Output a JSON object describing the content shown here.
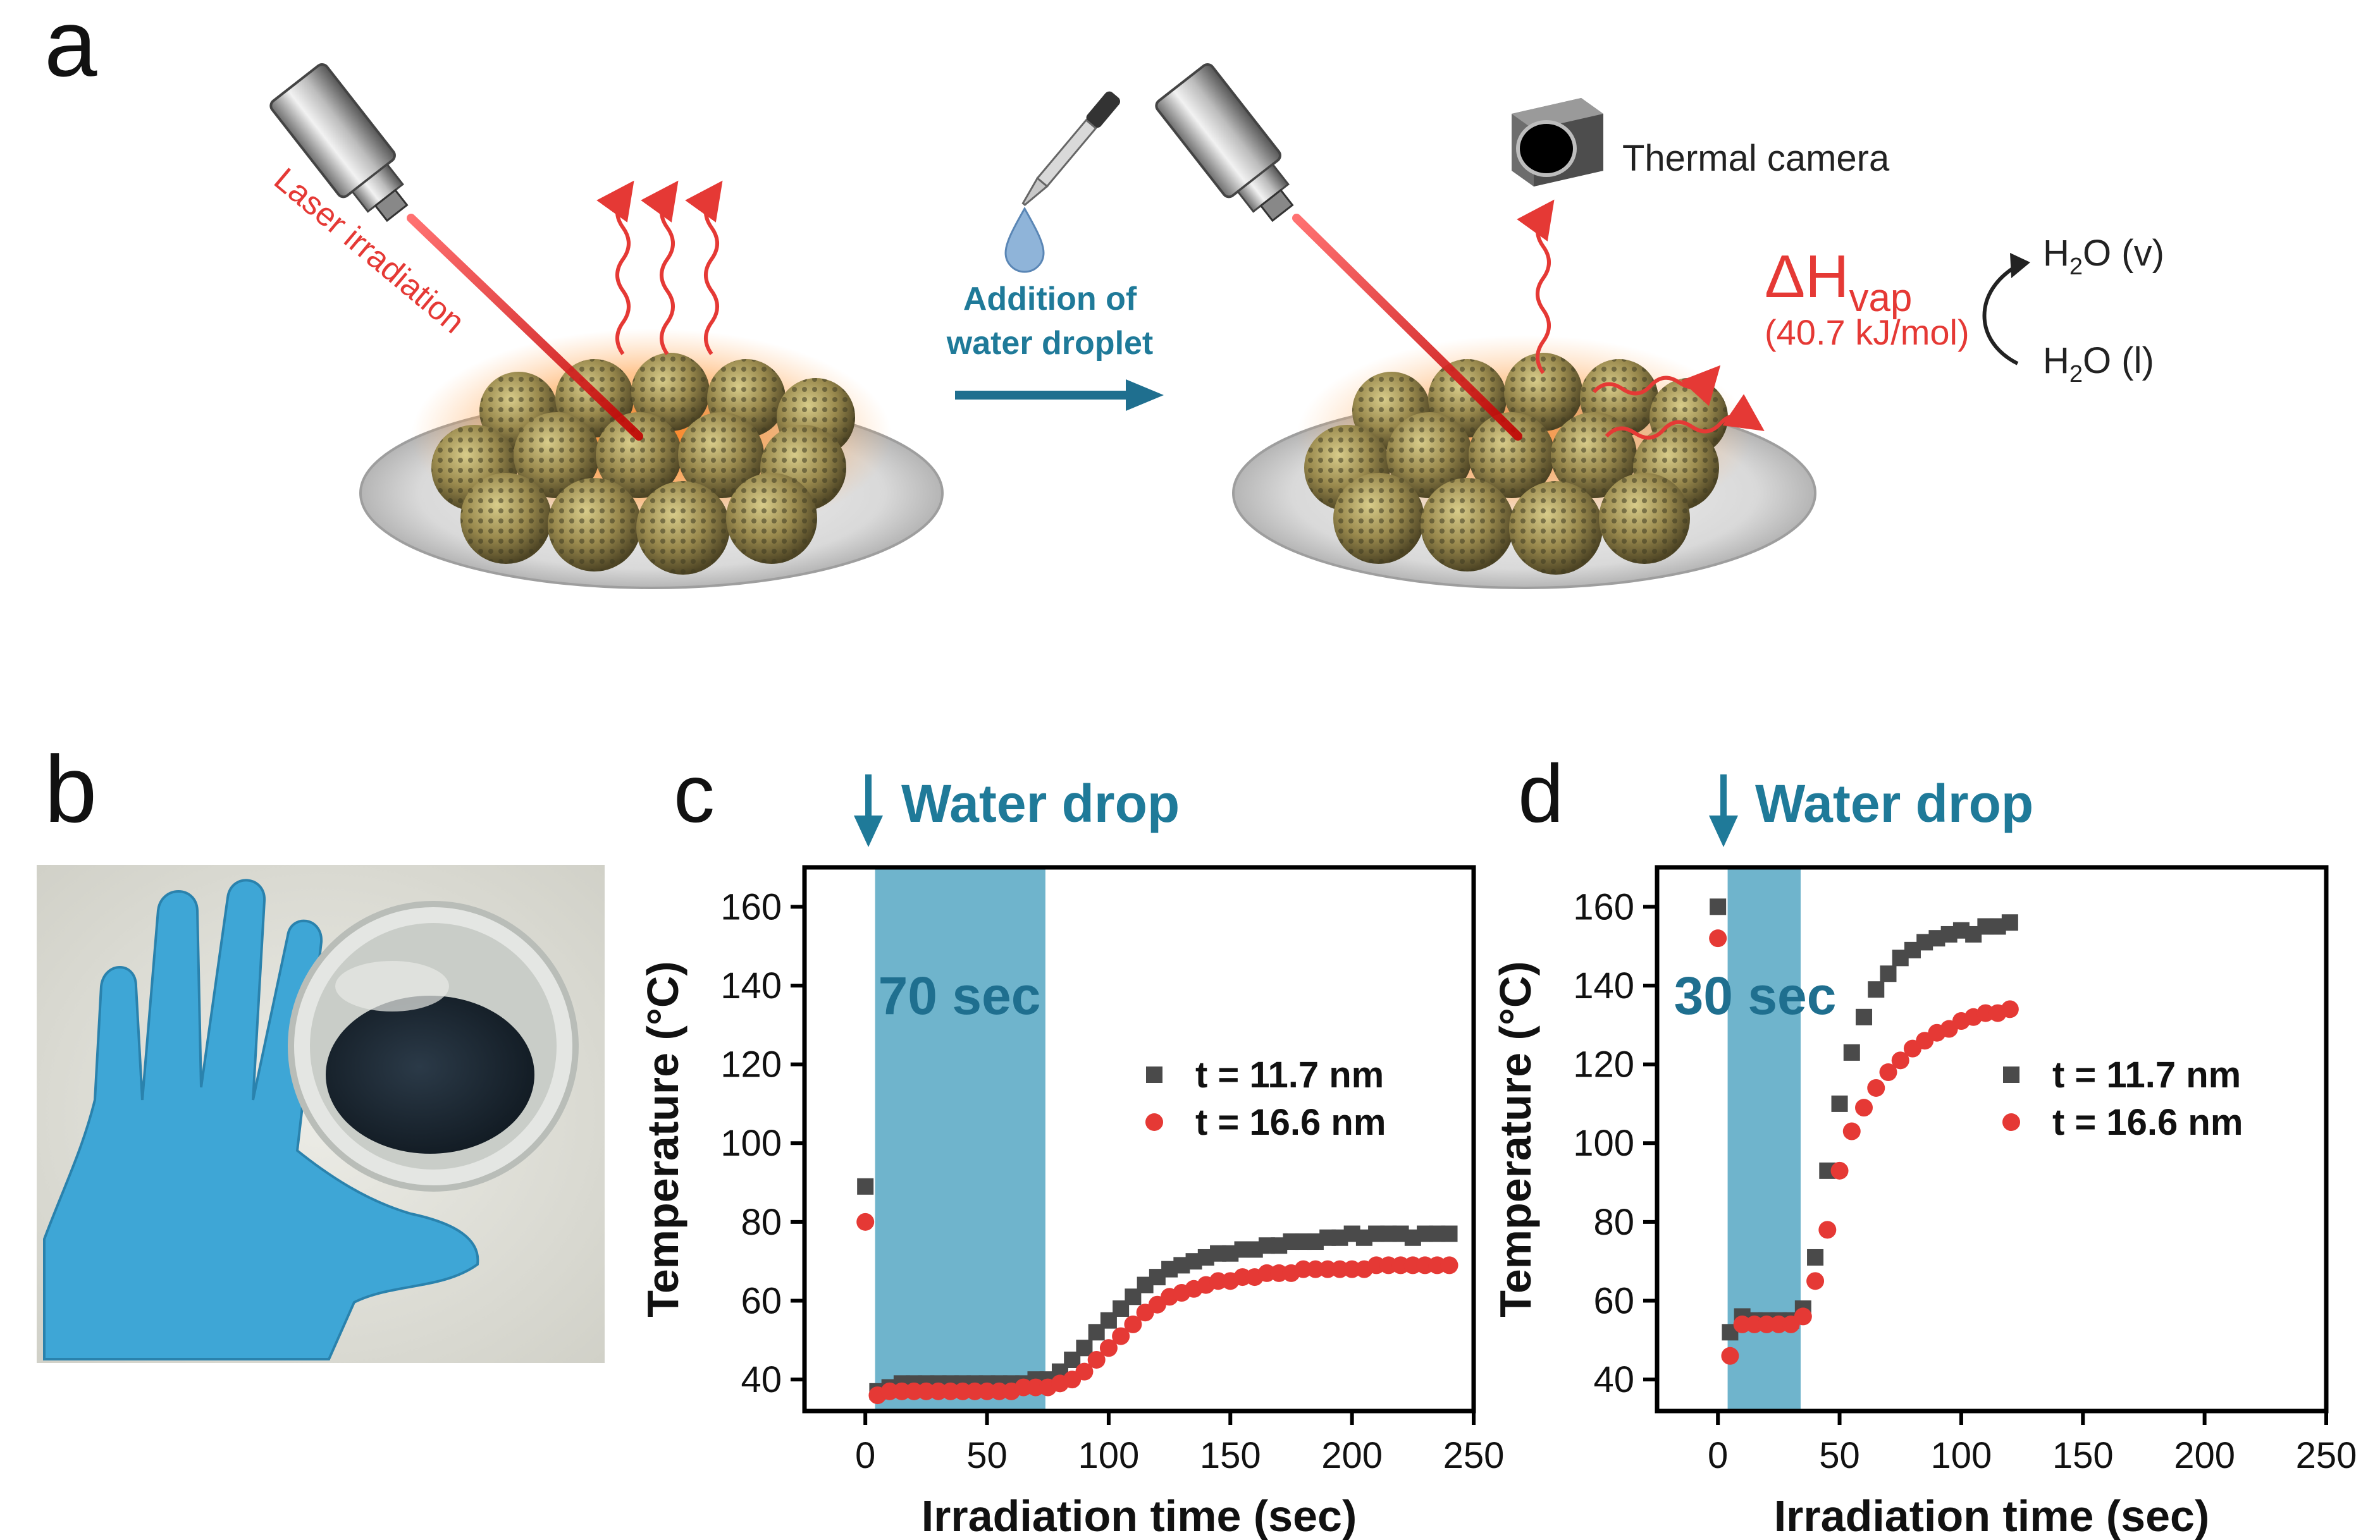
{
  "colors": {
    "laser_red": "#e53935",
    "teal": "#1f7a99",
    "band": "#6fb4cc",
    "series_dark": "#4a4a4a",
    "series_red": "#e53935",
    "glove": "#3ea6d6",
    "particle": "#9a8a4e",
    "glow": "#ff8a2a"
  },
  "panel_a": {
    "label": "a",
    "laser_label": "Laser irradiation",
    "step_label_line1": "Addition of",
    "step_label_line2": "water droplet",
    "camera_label": "Thermal camera",
    "dh_symbol": "ΔH",
    "dh_sub": "vap",
    "dh_value": "(40.7 kJ/mol)",
    "vapor": {
      "h": "H",
      "two": "2",
      "o": "O",
      "state": "(v)"
    },
    "liquid": {
      "h": "H",
      "two": "2",
      "o": "O",
      "state": "(l)"
    },
    "icons": [
      "laser-head-icon",
      "pipette-icon",
      "water-drop-icon",
      "thermal-camera-icon",
      "heat-wave-icon",
      "nanoparticle-icon",
      "dish-icon"
    ]
  },
  "panel_b": {
    "label": "b",
    "icons": [
      "glove-hand-icon",
      "petri-dish-icon"
    ]
  },
  "chart_data": [
    {
      "panel": "c",
      "type": "scatter",
      "annotation": "Water drop",
      "band_label": "70 sec",
      "band": [
        4,
        74
      ],
      "xlabel": "Irradiation time (sec)",
      "ylabel": "Temperature (°C)",
      "xlim": [
        -25,
        250
      ],
      "ylim": [
        32,
        170
      ],
      "xticks": [
        "0",
        "50",
        "100",
        "150",
        "200",
        "250"
      ],
      "yticks": [
        "40",
        "60",
        "80",
        "100",
        "120",
        "140",
        "160"
      ],
      "xtick_values": [
        0,
        50,
        100,
        150,
        200,
        250
      ],
      "ytick_values": [
        40,
        60,
        80,
        100,
        120,
        140,
        160
      ],
      "legend_position": "center-right",
      "series": [
        {
          "name": "t = 11.7 nm",
          "marker": "square",
          "x": [
            0,
            5,
            10,
            15,
            20,
            25,
            30,
            35,
            40,
            45,
            50,
            55,
            60,
            65,
            70,
            75,
            80,
            85,
            90,
            95,
            100,
            105,
            110,
            115,
            120,
            125,
            130,
            135,
            140,
            145,
            150,
            155,
            160,
            165,
            170,
            175,
            180,
            185,
            190,
            195,
            200,
            205,
            210,
            215,
            220,
            225,
            230,
            235,
            240
          ],
          "y": [
            89,
            37,
            38,
            39,
            39,
            39,
            39,
            39,
            39,
            39,
            39,
            39,
            39,
            39,
            40,
            40,
            42,
            45,
            48,
            52,
            55,
            58,
            61,
            64,
            66,
            68,
            69,
            70,
            71,
            72,
            72,
            73,
            73,
            74,
            74,
            75,
            75,
            75,
            76,
            76,
            77,
            76,
            77,
            77,
            77,
            76,
            77,
            77,
            77
          ]
        },
        {
          "name": "t = 16.6 nm",
          "marker": "circle",
          "x": [
            0,
            5,
            10,
            15,
            20,
            25,
            30,
            35,
            40,
            45,
            50,
            55,
            60,
            65,
            70,
            75,
            80,
            85,
            90,
            95,
            100,
            105,
            110,
            115,
            120,
            125,
            130,
            135,
            140,
            145,
            150,
            155,
            160,
            165,
            170,
            175,
            180,
            185,
            190,
            195,
            200,
            205,
            210,
            215,
            220,
            225,
            230,
            235,
            240
          ],
          "y": [
            80,
            36,
            37,
            37,
            37,
            37,
            37,
            37,
            37,
            37,
            37,
            37,
            37,
            38,
            38,
            38,
            39,
            40,
            42,
            45,
            48,
            51,
            54,
            57,
            59,
            61,
            62,
            63,
            64,
            65,
            65,
            66,
            66,
            67,
            67,
            67,
            68,
            68,
            68,
            68,
            68,
            68,
            69,
            69,
            69,
            69,
            69,
            69,
            69
          ]
        }
      ]
    },
    {
      "panel": "d",
      "type": "scatter",
      "annotation": "Water drop",
      "band_label": "30 sec",
      "band": [
        4,
        34
      ],
      "xlabel": "Irradiation time (sec)",
      "ylabel": "Temperature (°C)",
      "xlim": [
        -25,
        250
      ],
      "ylim": [
        32,
        170
      ],
      "xticks": [
        "0",
        "50",
        "100",
        "150",
        "200",
        "250"
      ],
      "yticks": [
        "40",
        "60",
        "80",
        "100",
        "120",
        "140",
        "160"
      ],
      "xtick_values": [
        0,
        50,
        100,
        150,
        200,
        250
      ],
      "ytick_values": [
        40,
        60,
        80,
        100,
        120,
        140,
        160
      ],
      "legend_position": "center-right",
      "series": [
        {
          "name": "t = 11.7 nm",
          "marker": "square",
          "x": [
            0,
            5,
            10,
            15,
            20,
            25,
            30,
            35,
            40,
            45,
            50,
            55,
            60,
            65,
            70,
            75,
            80,
            85,
            90,
            95,
            100,
            105,
            110,
            115,
            120
          ],
          "y": [
            160,
            52,
            56,
            55,
            55,
            55,
            55,
            58,
            71,
            93,
            110,
            123,
            132,
            139,
            143,
            147,
            149,
            151,
            152,
            153,
            154,
            153,
            155,
            155,
            156
          ]
        },
        {
          "name": "t = 16.6 nm",
          "marker": "circle",
          "x": [
            0,
            5,
            10,
            15,
            20,
            25,
            30,
            35,
            40,
            45,
            50,
            55,
            60,
            65,
            70,
            75,
            80,
            85,
            90,
            95,
            100,
            105,
            110,
            115,
            120
          ],
          "y": [
            152,
            46,
            54,
            54,
            54,
            54,
            54,
            56,
            65,
            78,
            93,
            103,
            109,
            114,
            118,
            121,
            124,
            126,
            128,
            129,
            131,
            132,
            133,
            133,
            134
          ]
        }
      ]
    }
  ]
}
